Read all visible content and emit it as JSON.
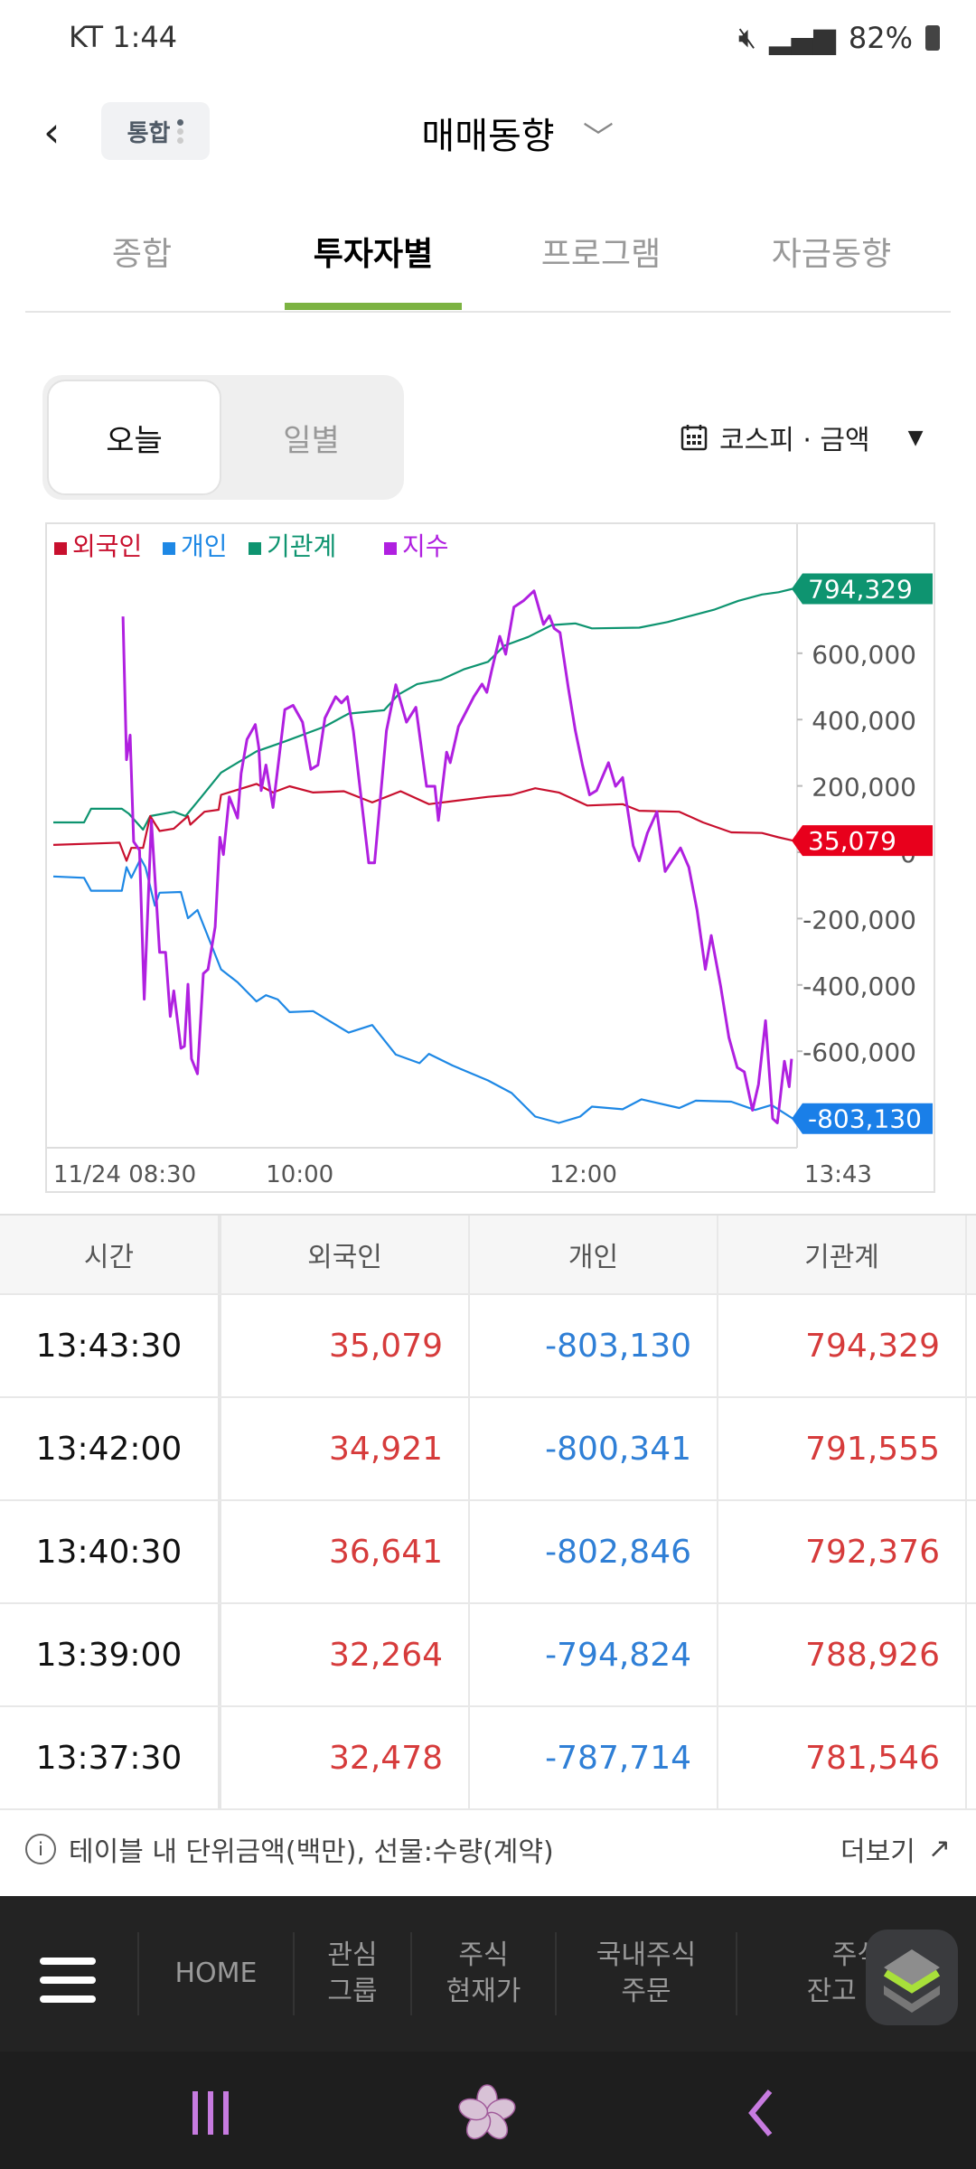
{
  "status_bar": {
    "carrier_time": "KT 1:44",
    "battery": "82%",
    "icons": [
      "whowho-call-icon",
      "volte-icon",
      "app-icon",
      "mute-icon",
      "hd-icon",
      "5g-icon",
      "signal-icon",
      "battery-icon"
    ]
  },
  "header": {
    "back": "‹",
    "badge": "통합",
    "title": "매매동향"
  },
  "tabs": [
    {
      "label": "종합"
    },
    {
      "label": "투자자별",
      "active": true
    },
    {
      "label": "프로그램"
    },
    {
      "label": "자금동향"
    }
  ],
  "accent": "#7cb342",
  "segment": {
    "today": "오늘",
    "daily": "일별",
    "selected": "오늘"
  },
  "filter": {
    "label": "코스피 · 금액"
  },
  "chart_data": {
    "type": "line",
    "legend": [
      "외국인",
      "개인",
      "기관계",
      "지수"
    ],
    "legend_position": "top-left",
    "x_ticks": [
      "11/24 08:30",
      "10:00",
      "12:00",
      "13:43"
    ],
    "y_ticks": [
      "600,000",
      "400,000",
      "200,000",
      "0",
      "-200,000",
      "-400,000",
      "-600,000"
    ],
    "ylim": [
      -888000,
      989000
    ],
    "grid": false,
    "end_labels": {
      "외국인": "35,079",
      "개인": "-803,130",
      "기관계": "794,329"
    },
    "series": [
      {
        "name": "외국인",
        "color": "#c8102e",
        "points": [
          [
            "08:30",
            22000
          ],
          [
            "08:58",
            29000
          ],
          [
            "09:01",
            -26000
          ],
          [
            "09:03",
            13000
          ],
          [
            "09:08",
            13000
          ],
          [
            "09:11",
            109000
          ],
          [
            "09:15",
            64000
          ],
          [
            "09:21",
            71000
          ],
          [
            "09:27",
            109000
          ],
          [
            "09:28",
            83000
          ],
          [
            "09:34",
            122000
          ],
          [
            "09:40",
            128000
          ],
          [
            "09:41",
            173000
          ],
          [
            "09:47",
            186000
          ],
          [
            "09:56",
            206000
          ],
          [
            "10:03",
            180000
          ],
          [
            "10:10",
            199000
          ],
          [
            "10:20",
            180000
          ],
          [
            "10:33",
            184000
          ],
          [
            "10:45",
            150000
          ],
          [
            "10:57",
            184000
          ],
          [
            "11:09",
            145000
          ],
          [
            "11:19",
            154000
          ],
          [
            "11:34",
            167000
          ],
          [
            "11:44",
            173000
          ],
          [
            "11:54",
            193000
          ],
          [
            "12:04",
            180000
          ],
          [
            "12:16",
            141000
          ],
          [
            "12:31",
            145000
          ],
          [
            "12:38",
            125000
          ],
          [
            "12:55",
            122000
          ],
          [
            "13:05",
            90000
          ],
          [
            "13:17",
            60000
          ],
          [
            "13:30",
            58000
          ],
          [
            "13:37",
            45000
          ],
          [
            "13:43",
            35079
          ]
        ]
      },
      {
        "name": "개인",
        "color": "#1e88e5",
        "points": [
          [
            "08:30",
            -73000
          ],
          [
            "08:43",
            -77000
          ],
          [
            "08:46",
            -116000
          ],
          [
            "08:59",
            -116000
          ],
          [
            "09:01",
            -45000
          ],
          [
            "09:03",
            -77000
          ],
          [
            "09:07",
            -19000
          ],
          [
            "09:09",
            -45000
          ],
          [
            "09:13",
            -161000
          ],
          [
            "09:15",
            -122000
          ],
          [
            "09:24",
            -120000
          ],
          [
            "09:27",
            -199000
          ],
          [
            "09:31",
            -174000
          ],
          [
            "09:41",
            -353000
          ],
          [
            "09:48",
            -392000
          ],
          [
            "09:56",
            -450000
          ],
          [
            "10:00",
            -431000
          ],
          [
            "10:05",
            -444000
          ],
          [
            "10:10",
            -482000
          ],
          [
            "10:20",
            -479000
          ],
          [
            "10:35",
            -544000
          ],
          [
            "10:45",
            -521000
          ],
          [
            "10:55",
            -610000
          ],
          [
            "11:05",
            -636000
          ],
          [
            "11:09",
            -608000
          ],
          [
            "11:19",
            -643000
          ],
          [
            "11:34",
            -688000
          ],
          [
            "11:44",
            -726000
          ],
          [
            "11:54",
            -797000
          ],
          [
            "12:04",
            -816000
          ],
          [
            "12:13",
            -797000
          ],
          [
            "12:18",
            -767000
          ],
          [
            "12:31",
            -775000
          ],
          [
            "12:39",
            -745000
          ],
          [
            "12:55",
            -771000
          ],
          [
            "13:02",
            -749000
          ],
          [
            "13:17",
            -752000
          ],
          [
            "13:27",
            -777000
          ],
          [
            "13:34",
            -762000
          ],
          [
            "13:43",
            -803130
          ]
        ]
      },
      {
        "name": "기관계",
        "color": "#0e9470",
        "points": [
          [
            "08:30",
            90000
          ],
          [
            "08:43",
            90000
          ],
          [
            "08:46",
            131000
          ],
          [
            "08:59",
            131000
          ],
          [
            "09:02",
            116000
          ],
          [
            "09:08",
            68000
          ],
          [
            "09:11",
            109000
          ],
          [
            "09:21",
            122000
          ],
          [
            "09:26",
            109000
          ],
          [
            "09:32",
            161000
          ],
          [
            "09:41",
            240000
          ],
          [
            "09:56",
            304000
          ],
          [
            "10:08",
            334000
          ],
          [
            "10:25",
            379000
          ],
          [
            "10:35",
            418000
          ],
          [
            "10:50",
            428000
          ],
          [
            "10:56",
            475000
          ],
          [
            "11:04",
            507000
          ],
          [
            "11:14",
            520000
          ],
          [
            "11:24",
            552000
          ],
          [
            "11:34",
            574000
          ],
          [
            "11:41",
            623000
          ],
          [
            "11:51",
            649000
          ],
          [
            "12:01",
            685000
          ],
          [
            "12:11",
            690000
          ],
          [
            "12:18",
            675000
          ],
          [
            "12:38",
            677000
          ],
          [
            "12:50",
            694000
          ],
          [
            "13:00",
            713000
          ],
          [
            "13:10",
            732000
          ],
          [
            "13:20",
            758000
          ],
          [
            "13:30",
            777000
          ],
          [
            "13:37",
            784000
          ],
          [
            "13:43",
            794329
          ]
        ]
      },
      {
        "name": "지수",
        "color": "#b020e0",
        "points": [
          [
            "08:59:30",
            711000
          ],
          [
            "09:01:00",
            279000
          ],
          [
            "09:02:30",
            353000
          ],
          [
            "09:04:00",
            32000
          ],
          [
            "09:06:30",
            6000
          ],
          [
            "09:08:30",
            -443000
          ],
          [
            "09:11:30",
            96000
          ],
          [
            "09:15:00",
            -302000
          ],
          [
            "09:17:30",
            -302000
          ],
          [
            "09:19:30",
            -495000
          ],
          [
            "09:21:00",
            -418000
          ],
          [
            "09:24:00",
            -591000
          ],
          [
            "09:25:30",
            -585000
          ],
          [
            "09:27:00",
            -398000
          ],
          [
            "09:28:30",
            -623000
          ],
          [
            "09:31:00",
            -668000
          ],
          [
            "09:33:30",
            -366000
          ],
          [
            "09:35:30",
            -353000
          ],
          [
            "09:38:30",
            -225000
          ],
          [
            "09:40:30",
            45000
          ],
          [
            "09:42:00",
            -7000
          ],
          [
            "09:44:30",
            167000
          ],
          [
            "09:48:00",
            103000
          ],
          [
            "09:49:30",
            238000
          ],
          [
            "09:52:00",
            340000
          ],
          [
            "09:55:30",
            385000
          ],
          [
            "09:57:00",
            315000
          ],
          [
            "09:58:00",
            186000
          ],
          [
            "10:00:00",
            263000
          ],
          [
            "10:03:00",
            135000
          ],
          [
            "10:08:00",
            430000
          ],
          [
            "10:11:30",
            443000
          ],
          [
            "10:15:30",
            392000
          ],
          [
            "10:19:00",
            250000
          ],
          [
            "10:22:00",
            263000
          ],
          [
            "10:25:00",
            405000
          ],
          [
            "10:29:30",
            469000
          ],
          [
            "10:32:00",
            450000
          ],
          [
            "10:34:30",
            469000
          ],
          [
            "10:37:00",
            366000
          ],
          [
            "10:43:30",
            -32000
          ],
          [
            "10:46:00",
            -32000
          ],
          [
            "10:51:00",
            366000
          ],
          [
            "10:55:00",
            505000
          ],
          [
            "10:59:30",
            392000
          ],
          [
            "11:03:30",
            437000
          ],
          [
            "11:08:00",
            199000
          ],
          [
            "11:11:30",
            199000
          ],
          [
            "11:13:00",
            96000
          ],
          [
            "11:16:30",
            302000
          ],
          [
            "11:18:00",
            270000
          ],
          [
            "11:21:30",
            379000
          ],
          [
            "11:28:00",
            469000
          ],
          [
            "11:31:30",
            507000
          ],
          [
            "11:33:30",
            482000
          ],
          [
            "11:35:30",
            546000
          ],
          [
            "11:39:00",
            651000
          ],
          [
            "11:41:30",
            597000
          ],
          [
            "11:45:00",
            739000
          ],
          [
            "11:49:00",
            758000
          ],
          [
            "11:53:30",
            788000
          ],
          [
            "11:57:30",
            687000
          ],
          [
            "12:00:00",
            713000
          ],
          [
            "12:02:00",
            675000
          ],
          [
            "12:04:30",
            662000
          ],
          [
            "12:08:00",
            495000
          ],
          [
            "12:11:00",
            366000
          ],
          [
            "12:14:00",
            263000
          ],
          [
            "12:17:00",
            173000
          ],
          [
            "12:20:00",
            186000
          ],
          [
            "12:25:00",
            270000
          ],
          [
            "12:28:00",
            199000
          ],
          [
            "12:31:00",
            225000
          ],
          [
            "12:35:30",
            19000
          ],
          [
            "12:38:00",
            -26000
          ],
          [
            "12:41:30",
            58000
          ],
          [
            "12:45:30",
            122000
          ],
          [
            "12:49:00",
            -58000
          ],
          [
            "12:52:30",
            -19000
          ],
          [
            "12:55:30",
            13000
          ],
          [
            "12:59:00",
            -45000
          ],
          [
            "13:02:30",
            -174000
          ],
          [
            "13:06:00",
            -353000
          ],
          [
            "13:08:30",
            -251000
          ],
          [
            "13:12:30",
            -405000
          ],
          [
            "13:16:00",
            -559000
          ],
          [
            "13:19:30",
            -649000
          ],
          [
            "13:22:30",
            -662000
          ],
          [
            "13:26:00",
            -778000
          ],
          [
            "13:28:30",
            -700000
          ],
          [
            "13:31:30",
            -508000
          ],
          [
            "13:34:30",
            -803000
          ],
          [
            "13:36:30",
            -816000
          ],
          [
            "13:39:30",
            -630000
          ],
          [
            "13:41:30",
            -707000
          ],
          [
            "13:42:30",
            -623000
          ]
        ]
      }
    ]
  },
  "table": {
    "headers": [
      "시간",
      "외국인",
      "개인",
      "기관계"
    ],
    "rows": [
      [
        "13:43:30",
        "35,079",
        "-803,130",
        "794,329"
      ],
      [
        "13:42:00",
        "34,921",
        "-800,341",
        "791,555"
      ],
      [
        "13:40:30",
        "36,641",
        "-802,846",
        "792,376"
      ],
      [
        "13:39:00",
        "32,264",
        "-794,824",
        "788,926"
      ],
      [
        "13:37:30",
        "32,478",
        "-787,714",
        "781,546"
      ]
    ]
  },
  "info": {
    "note": "테이블 내 단위금액(백만), 선물:수량(계약)",
    "more": "더보기"
  },
  "bottom_nav": {
    "items": [
      "HOME",
      "관심\n그룹",
      "주식\n현재가",
      "국내주식\n주문",
      "주식\n잔고 · 손"
    ]
  }
}
